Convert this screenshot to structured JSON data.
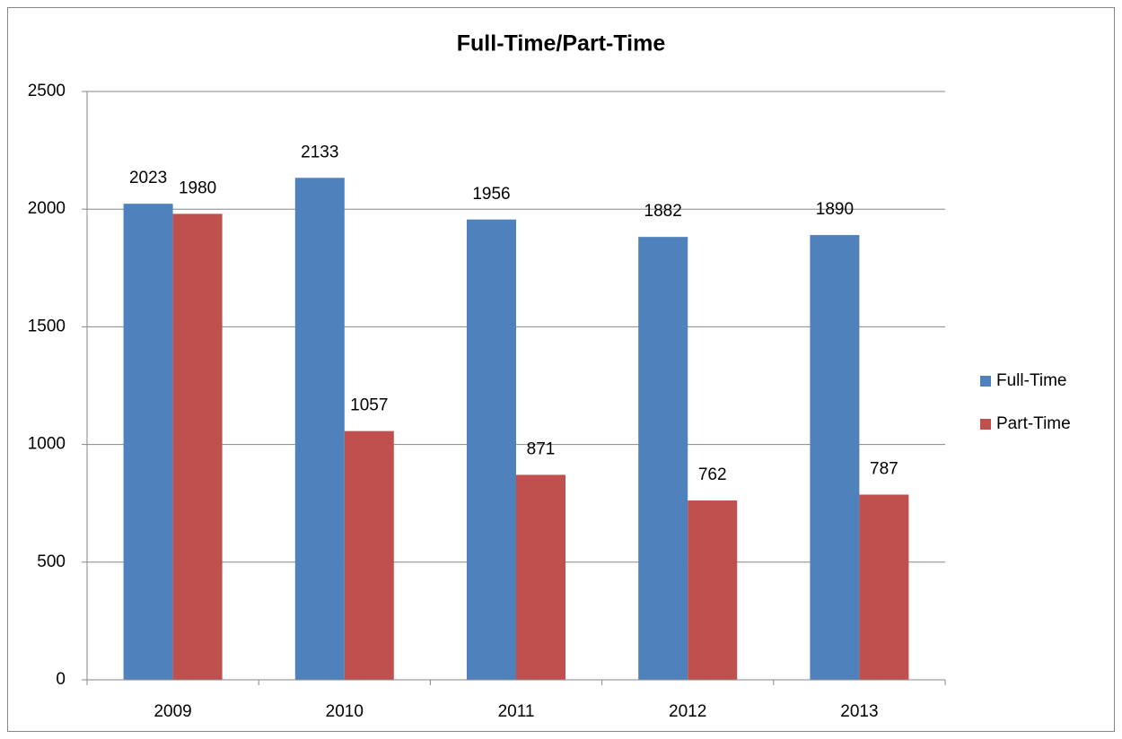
{
  "chart_data": {
    "type": "bar",
    "title": "Full-Time/Part-Time",
    "categories": [
      "2009",
      "2010",
      "2011",
      "2012",
      "2013"
    ],
    "series": [
      {
        "name": "Full-Time",
        "color": "#4f81bd",
        "values": [
          2023,
          2133,
          1956,
          1882,
          1890
        ]
      },
      {
        "name": "Part-Time",
        "color": "#c0504d",
        "values": [
          1980,
          1057,
          871,
          762,
          787
        ]
      }
    ],
    "ylim": [
      0,
      2500
    ],
    "yticks": [
      0,
      500,
      1000,
      1500,
      2000,
      2500
    ],
    "grid": true,
    "legend": "right"
  }
}
